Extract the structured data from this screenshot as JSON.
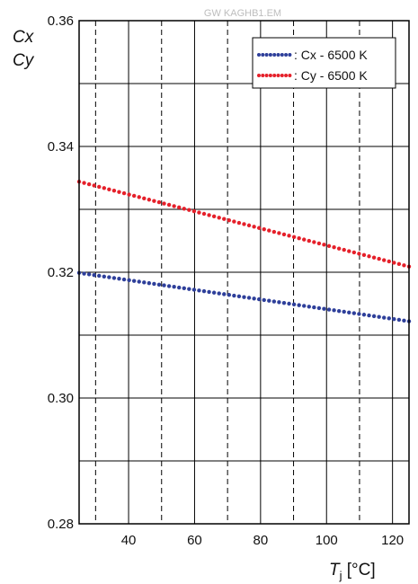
{
  "watermark": "GW KAGHB1.EM",
  "chart_data": {
    "type": "line",
    "ylabel_lines": [
      "Cx",
      "Cy"
    ],
    "xlabel": {
      "main": "T",
      "subscript": "j",
      "unit": " [°C]"
    },
    "xlim": [
      25,
      125
    ],
    "ylim": [
      0.28,
      0.36
    ],
    "x_ticks": [
      40,
      60,
      80,
      100,
      120
    ],
    "y_ticks": [
      0.28,
      0.3,
      0.32,
      0.34,
      0.36
    ],
    "y_tick_labels": [
      "0.28",
      "0.30",
      "0.32",
      "0.34",
      "0.36"
    ],
    "x_grid_solid": [
      40,
      60,
      80,
      100,
      120
    ],
    "x_grid_dashed": [
      30,
      50,
      70,
      90,
      110
    ],
    "y_grid": [
      0.29,
      0.3,
      0.31,
      0.32,
      0.33,
      0.34,
      0.35
    ],
    "grid": true,
    "legend_position": "top-right",
    "series": [
      {
        "name": ": Cx - 6500 K",
        "color": "#2e3f9a",
        "style": "dotted",
        "x": [
          25,
          125
        ],
        "y": [
          0.3199,
          0.3122
        ]
      },
      {
        "name": ": Cy - 6500 K",
        "color": "#e5202a",
        "style": "dotted",
        "x": [
          25,
          125
        ],
        "y": [
          0.3344,
          0.3209
        ]
      }
    ]
  }
}
